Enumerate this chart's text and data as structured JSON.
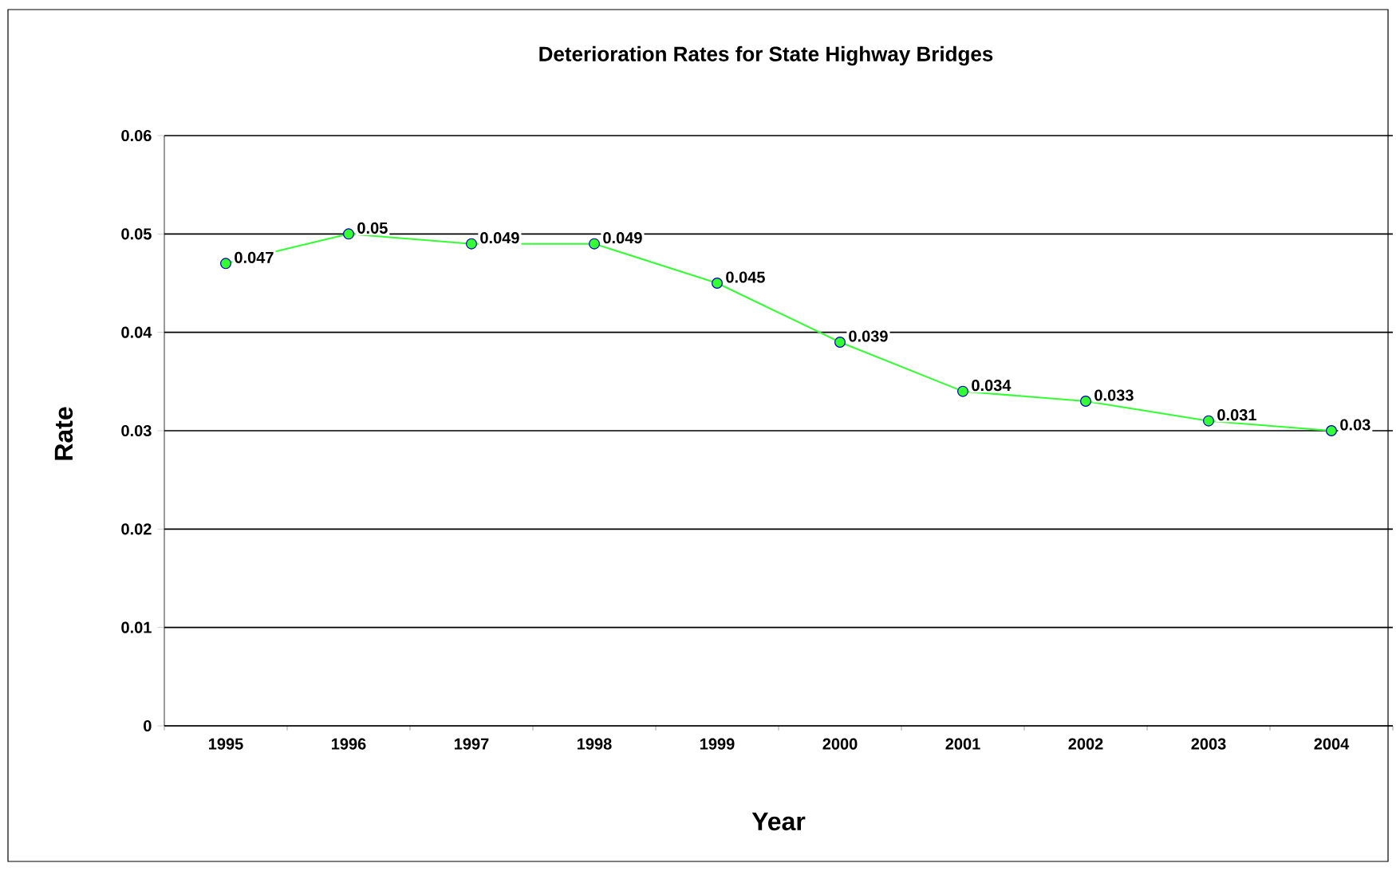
{
  "chart_data": {
    "type": "line",
    "title": "Deterioration Rates for State Highway Bridges",
    "xlabel": "Year",
    "ylabel": "Rate",
    "categories": [
      "1995",
      "1996",
      "1997",
      "1998",
      "1999",
      "2000",
      "2001",
      "2002",
      "2003",
      "2004"
    ],
    "values": [
      0.047,
      0.05,
      0.049,
      0.049,
      0.045,
      0.039,
      0.034,
      0.033,
      0.031,
      0.03
    ],
    "color": "#33ff33",
    "marker": "circle",
    "data_labels": true,
    "grid": "y",
    "ylim": [
      0,
      0.06
    ],
    "yticks": [
      0,
      0.01,
      0.02,
      0.03,
      0.04,
      0.05,
      0.06
    ]
  }
}
